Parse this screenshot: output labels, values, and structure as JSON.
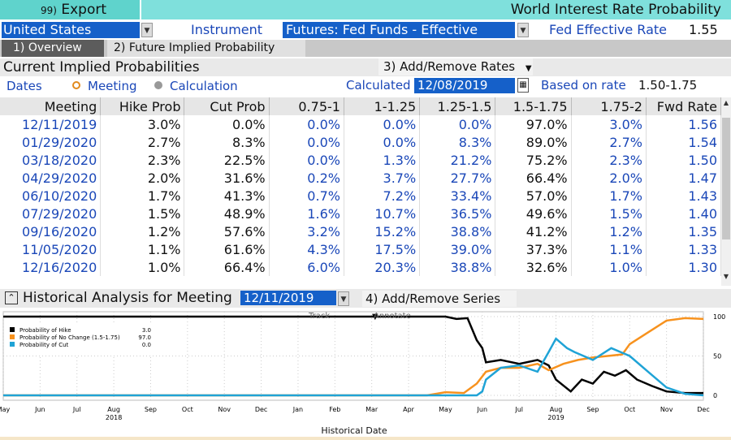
{
  "header": {
    "export_num": "99)",
    "export_label": "Export",
    "title": "World Interest Rate Probability"
  },
  "controls": {
    "country": "United States",
    "instrument_label": "Instrument",
    "instrument_value": "Futures: Fed Funds - Effective",
    "fed_rate_label": "Fed Effective Rate",
    "fed_rate_value": "1.55"
  },
  "tabs": [
    {
      "label": "1) Overview"
    },
    {
      "label": "2) Future Implied Probability"
    }
  ],
  "section1": {
    "title": "Current Implied Probabilities",
    "add_remove_rates": "3) Add/Remove Rates",
    "dates_label": "Dates",
    "radio_meeting": "Meeting",
    "radio_calculation": "Calculation",
    "calculated_label": "Calculated",
    "calculated_date": "12/08/2019",
    "based_on_label": "Based on rate",
    "based_on_value": "1.50-1.75"
  },
  "table": {
    "headers": [
      "Meeting",
      "Hike Prob",
      "Cut Prob",
      "0.75-1",
      "1-1.25",
      "1.25-1.5",
      "1.5-1.75",
      "1.75-2",
      "Fwd Rate"
    ],
    "rows": [
      [
        "12/11/2019",
        "3.0%",
        "0.0%",
        "0.0%",
        "0.0%",
        "0.0%",
        "97.0%",
        "3.0%",
        "1.56"
      ],
      [
        "01/29/2020",
        "2.7%",
        "8.3%",
        "0.0%",
        "0.0%",
        "8.3%",
        "89.0%",
        "2.7%",
        "1.54"
      ],
      [
        "03/18/2020",
        "2.3%",
        "22.5%",
        "0.0%",
        "1.3%",
        "21.2%",
        "75.2%",
        "2.3%",
        "1.50"
      ],
      [
        "04/29/2020",
        "2.0%",
        "31.6%",
        "0.2%",
        "3.7%",
        "27.7%",
        "66.4%",
        "2.0%",
        "1.47"
      ],
      [
        "06/10/2020",
        "1.7%",
        "41.3%",
        "0.7%",
        "7.2%",
        "33.4%",
        "57.0%",
        "1.7%",
        "1.43"
      ],
      [
        "07/29/2020",
        "1.5%",
        "48.9%",
        "1.6%",
        "10.7%",
        "36.5%",
        "49.6%",
        "1.5%",
        "1.40"
      ],
      [
        "09/16/2020",
        "1.2%",
        "57.6%",
        "3.2%",
        "15.2%",
        "38.8%",
        "41.2%",
        "1.2%",
        "1.35"
      ],
      [
        "11/05/2020",
        "1.1%",
        "61.6%",
        "4.3%",
        "17.5%",
        "39.0%",
        "37.3%",
        "1.1%",
        "1.33"
      ],
      [
        "12/16/2020",
        "1.0%",
        "66.4%",
        "6.0%",
        "20.3%",
        "38.8%",
        "32.6%",
        "1.0%",
        "1.30"
      ]
    ]
  },
  "section2": {
    "title": "Historical Analysis for Meeting",
    "meeting_date": "12/11/2019",
    "add_remove_series": "4) Add/Remove Series",
    "track_label": "Track",
    "annotate_label": "Annotate"
  },
  "chart_data": {
    "type": "line",
    "xlabel": "Historical Date",
    "x_ticks": [
      "May",
      "Jun",
      "Jul",
      "Aug",
      "Sep",
      "Oct",
      "Nov",
      "Dec",
      "Jan",
      "Feb",
      "Mar",
      "Apr",
      "May",
      "Jun",
      "Jul",
      "Aug",
      "Sep",
      "Oct",
      "Nov",
      "Dec"
    ],
    "year_labels": [
      "2018",
      "2019"
    ],
    "y_ticks": [
      "100",
      "50",
      "0"
    ],
    "ylim": [
      0,
      100
    ],
    "legend": [
      {
        "name": "Probability of Hike",
        "value": "3.0",
        "color": "#000000"
      },
      {
        "name": "Probability of No Change (1.5-1.75)",
        "value": "97.0",
        "color": "#f7921e"
      },
      {
        "name": "Probability of Cut",
        "value": "0.0",
        "color": "#1fa3d6"
      }
    ],
    "series": [
      {
        "name": "Probability of Hike",
        "color": "#000000",
        "points": [
          [
            0,
            100
          ],
          [
            12.0,
            100
          ],
          [
            12.3,
            97
          ],
          [
            12.6,
            98
          ],
          [
            12.85,
            70
          ],
          [
            13.0,
            60
          ],
          [
            13.1,
            42
          ],
          [
            13.5,
            45
          ],
          [
            14.0,
            40
          ],
          [
            14.5,
            45
          ],
          [
            14.8,
            38
          ],
          [
            15.0,
            20
          ],
          [
            15.4,
            5
          ],
          [
            15.7,
            20
          ],
          [
            16.0,
            15
          ],
          [
            16.3,
            30
          ],
          [
            16.6,
            25
          ],
          [
            16.9,
            32
          ],
          [
            17.2,
            20
          ],
          [
            17.6,
            12
          ],
          [
            18.0,
            5
          ],
          [
            18.5,
            3
          ],
          [
            19.0,
            3
          ]
        ]
      },
      {
        "name": "Probability of No Change (1.5-1.75)",
        "color": "#f7921e",
        "points": [
          [
            0,
            0
          ],
          [
            11.5,
            0
          ],
          [
            12.0,
            4
          ],
          [
            12.5,
            3
          ],
          [
            12.85,
            15
          ],
          [
            13.1,
            30
          ],
          [
            13.5,
            35
          ],
          [
            14.0,
            35
          ],
          [
            14.5,
            40
          ],
          [
            14.8,
            32
          ],
          [
            15.2,
            40
          ],
          [
            15.6,
            45
          ],
          [
            16.0,
            48
          ],
          [
            16.4,
            50
          ],
          [
            16.8,
            52
          ],
          [
            17.0,
            65
          ],
          [
            17.5,
            80
          ],
          [
            18.0,
            95
          ],
          [
            18.5,
            98
          ],
          [
            19.0,
            97
          ]
        ]
      },
      {
        "name": "Probability of Cut",
        "color": "#1fa3d6",
        "points": [
          [
            0,
            0
          ],
          [
            12.85,
            0
          ],
          [
            13.0,
            5
          ],
          [
            13.1,
            20
          ],
          [
            13.5,
            35
          ],
          [
            14.0,
            38
          ],
          [
            14.5,
            30
          ],
          [
            14.8,
            55
          ],
          [
            15.0,
            72
          ],
          [
            15.3,
            60
          ],
          [
            15.5,
            55
          ],
          [
            16.0,
            45
          ],
          [
            16.5,
            60
          ],
          [
            17.0,
            50
          ],
          [
            17.5,
            30
          ],
          [
            18.0,
            10
          ],
          [
            18.5,
            2
          ],
          [
            19.0,
            0
          ]
        ]
      }
    ]
  }
}
